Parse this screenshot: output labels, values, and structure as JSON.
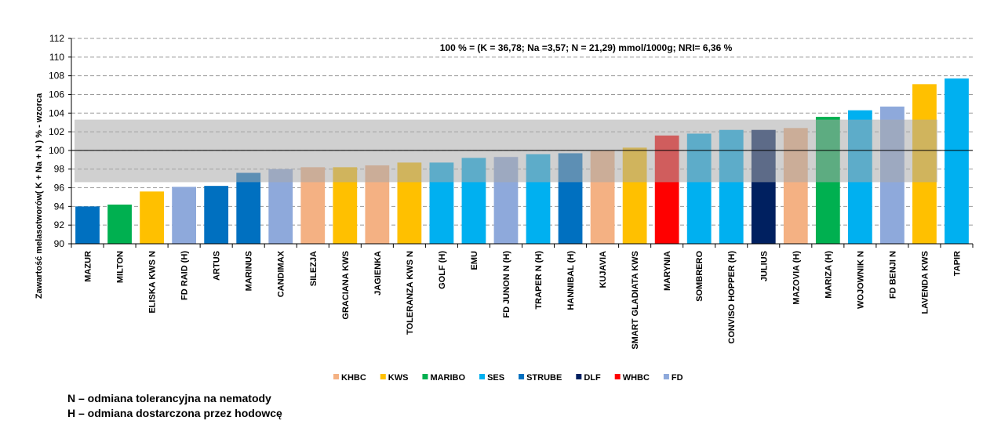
{
  "chart_data": {
    "type": "bar",
    "title": "",
    "annotation": "100 % =  (K = 36,78; Na =3,57; N = 21,29) mmol/1000g; NRI= 6,36 %",
    "ylabel": "Zawartość melasotworów( K + Na + N ) % - wzorca",
    "xlabel": "",
    "ylim": [
      90,
      112
    ],
    "yticks": [
      90,
      92,
      94,
      96,
      98,
      100,
      102,
      104,
      106,
      108,
      110,
      112
    ],
    "grid": "horizontal-dashed",
    "reference_line": 100,
    "band": [
      96.6,
      103.3
    ],
    "legend_position": "bottom",
    "categories": [
      "MAZUR",
      "MILTON",
      "ELISKA KWS N",
      "FD RAID (H)",
      "ARTUS",
      "MARINUS",
      "CANDIMAX",
      "SILEZJA",
      "GRACIANA KWS",
      "JAGIENKA",
      "TOLERANZA KWS N",
      "GOLF (H)",
      "EMU",
      "FD JUNON N (H)",
      "TRAPER N (H)",
      "HANNIBAL (H)",
      "KUJAVIA",
      "SMART GLADIATA KWS",
      "MARYNIA",
      "SOMBRERO",
      "CONVISO HOPPER (H)",
      "JULIUS",
      "MAZOVIA (H)",
      "MARIZA (H)",
      "WOJOWNIK N",
      "FD BENJI N",
      "LAVENDA KWS",
      "TAPIR"
    ],
    "values": [
      94.0,
      94.2,
      95.6,
      96.1,
      96.2,
      97.6,
      98.0,
      98.2,
      98.2,
      98.4,
      98.7,
      98.7,
      99.2,
      99.3,
      99.6,
      99.7,
      100.0,
      100.3,
      101.6,
      101.8,
      102.2,
      102.2,
      102.4,
      103.6,
      104.3,
      104.7,
      107.1,
      107.7
    ],
    "breeders": [
      "STRUBE",
      "MARIBO",
      "KWS",
      "FD",
      "STRUBE",
      "STRUBE",
      "FD",
      "KHBC",
      "KWS",
      "KHBC",
      "KWS",
      "SES",
      "SES",
      "FD",
      "SES",
      "STRUBE",
      "KHBC",
      "KWS",
      "WHBC",
      "SES",
      "SES",
      "DLF",
      "KHBC",
      "MARIBO",
      "SES",
      "FD",
      "KWS",
      "SES"
    ],
    "legend": [
      {
        "name": "KHBC",
        "color": "#F4B183"
      },
      {
        "name": "KWS",
        "color": "#FFC000"
      },
      {
        "name": "MARIBO",
        "color": "#00B050"
      },
      {
        "name": "SES",
        "color": "#00B0F0"
      },
      {
        "name": "STRUBE",
        "color": "#0070C0"
      },
      {
        "name": "DLF",
        "color": "#002060"
      },
      {
        "name": "WHBC",
        "color": "#FF0000"
      },
      {
        "name": "FD",
        "color": "#8EA9DB"
      }
    ]
  },
  "footnotes": {
    "n": "N – odmiana tolerancyjna na nematody",
    "h": "H – odmiana dostarczona przez hodowcę"
  }
}
